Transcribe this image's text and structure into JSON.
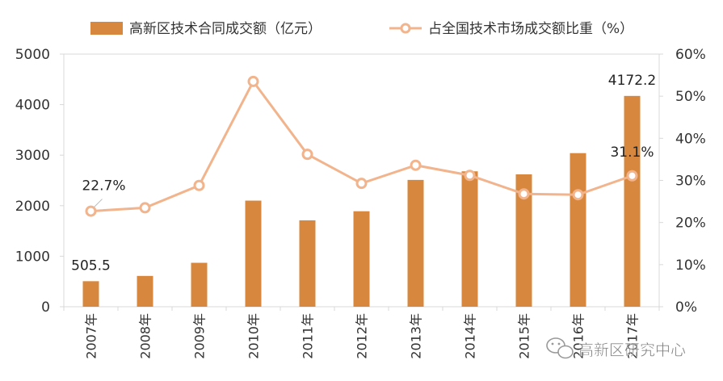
{
  "chart_data": {
    "type": "bar",
    "categories": [
      "2007年",
      "2008年",
      "2009年",
      "2010年",
      "2011年",
      "2012年",
      "2013年",
      "2014年",
      "2015年",
      "2016年",
      "2017年"
    ],
    "series": [
      {
        "name": "高新区技术合同成交额（亿元）",
        "type": "bar",
        "axis": "left",
        "values": [
          505.5,
          610,
          870,
          2100,
          1710,
          1890,
          2510,
          2680,
          2620,
          3040,
          4172.2
        ],
        "color": "#D8883E"
      },
      {
        "name": "占全国技术市场成交额比重（%）",
        "type": "line",
        "axis": "right",
        "values": [
          22.7,
          23.5,
          28.8,
          53.5,
          36.2,
          29.3,
          33.6,
          31.2,
          26.8,
          26.6,
          31.1
        ],
        "color": "#F2B48C"
      }
    ],
    "left_axis": {
      "min": 0,
      "max": 5000,
      "ticks": [
        "0",
        "1000",
        "2000",
        "3000",
        "4000",
        "5000"
      ]
    },
    "right_axis": {
      "min": 0,
      "max": 60,
      "ticks": [
        "0%",
        "10%",
        "20%",
        "30%",
        "40%",
        "50%",
        "60%"
      ]
    },
    "data_labels": [
      {
        "series": 0,
        "index": 0,
        "text": "505.5"
      },
      {
        "series": 0,
        "index": 10,
        "text": "4172.2"
      },
      {
        "series": 1,
        "index": 0,
        "text": "22.7%"
      },
      {
        "series": 1,
        "index": 10,
        "text": "31.1%"
      }
    ],
    "legend_position": "top",
    "grid": false
  },
  "watermark": {
    "icon": "wechat-icon",
    "text": "高新区研究中心"
  }
}
